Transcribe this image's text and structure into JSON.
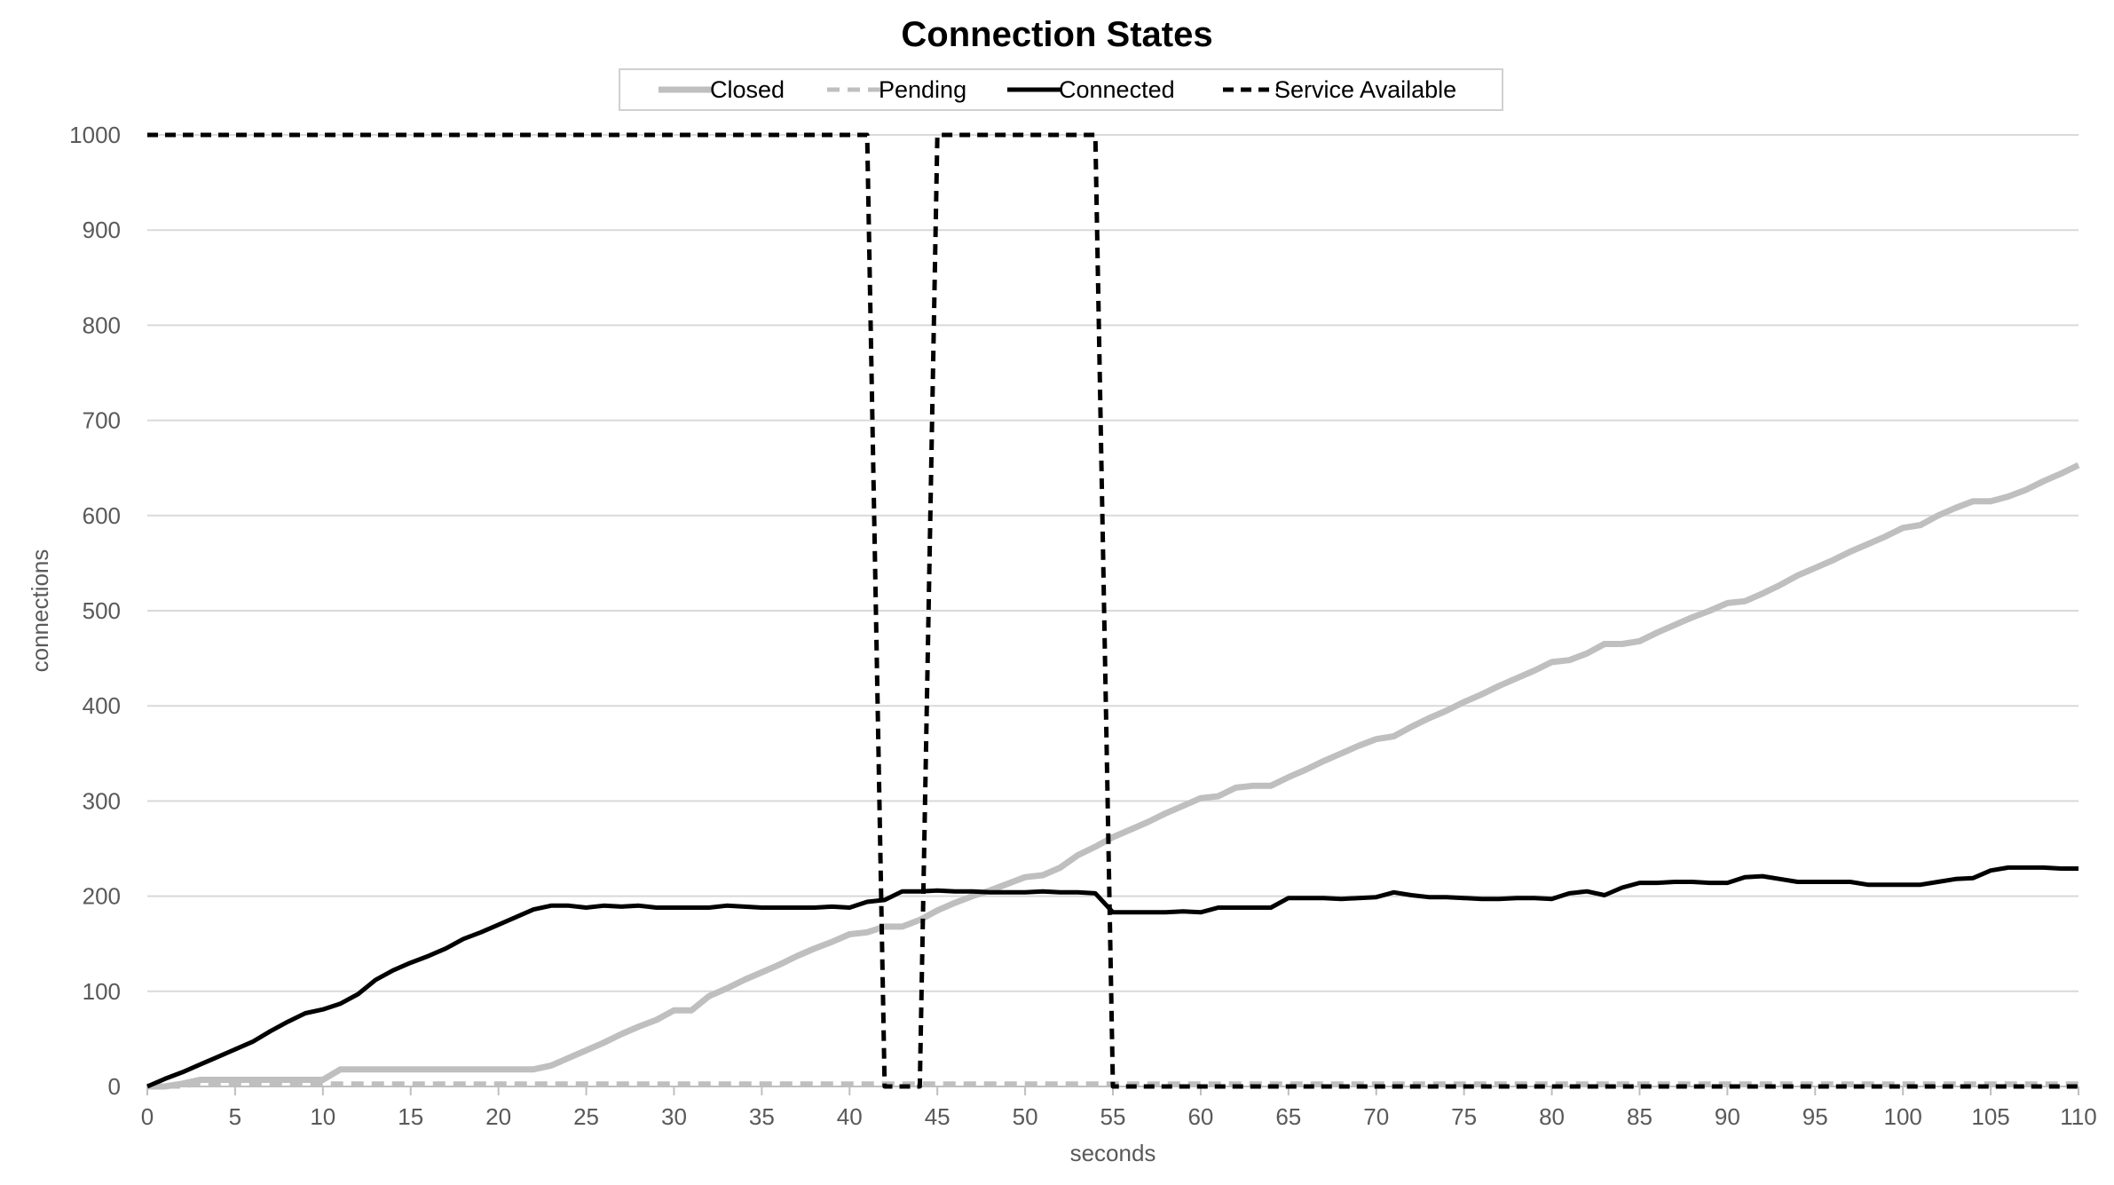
{
  "chart_data": {
    "type": "line",
    "title": "Connection States",
    "xlabel": "seconds",
    "ylabel": "connections",
    "xlim": [
      0,
      110
    ],
    "ylim": [
      0,
      1000
    ],
    "x_ticks": [
      0,
      5,
      10,
      15,
      20,
      25,
      30,
      35,
      40,
      45,
      50,
      55,
      60,
      65,
      70,
      75,
      80,
      85,
      90,
      95,
      100,
      105,
      110
    ],
    "y_ticks": [
      0,
      100,
      200,
      300,
      400,
      500,
      600,
      700,
      800,
      900,
      1000
    ],
    "grid": "horizontal",
    "legend": "top-center",
    "series": [
      {
        "name": "Closed",
        "color": "#bfbfbf",
        "style": "solid",
        "points": [
          [
            0,
            0
          ],
          [
            1,
            0
          ],
          [
            2,
            3
          ],
          [
            3,
            7
          ],
          [
            4,
            7
          ],
          [
            5,
            7
          ],
          [
            6,
            7
          ],
          [
            7,
            7
          ],
          [
            8,
            7
          ],
          [
            9,
            7
          ],
          [
            10,
            7
          ],
          [
            11,
            18
          ],
          [
            12,
            18
          ],
          [
            13,
            18
          ],
          [
            14,
            18
          ],
          [
            15,
            18
          ],
          [
            16,
            18
          ],
          [
            17,
            18
          ],
          [
            18,
            18
          ],
          [
            19,
            18
          ],
          [
            20,
            18
          ],
          [
            21,
            18
          ],
          [
            22,
            18
          ],
          [
            23,
            22
          ],
          [
            24,
            30
          ],
          [
            25,
            38
          ],
          [
            26,
            46
          ],
          [
            27,
            55
          ],
          [
            28,
            63
          ],
          [
            29,
            70
          ],
          [
            30,
            80
          ],
          [
            31,
            80
          ],
          [
            32,
            95
          ],
          [
            33,
            103
          ],
          [
            34,
            112
          ],
          [
            35,
            120
          ],
          [
            36,
            128
          ],
          [
            37,
            137
          ],
          [
            38,
            145
          ],
          [
            39,
            152
          ],
          [
            40,
            160
          ],
          [
            41,
            162
          ],
          [
            42,
            168
          ],
          [
            43,
            168
          ],
          [
            44,
            175
          ],
          [
            45,
            185
          ],
          [
            46,
            193
          ],
          [
            47,
            200
          ],
          [
            48,
            206
          ],
          [
            49,
            213
          ],
          [
            50,
            220
          ],
          [
            51,
            222
          ],
          [
            52,
            230
          ],
          [
            53,
            243
          ],
          [
            54,
            252
          ],
          [
            55,
            262
          ],
          [
            56,
            270
          ],
          [
            57,
            278
          ],
          [
            58,
            287
          ],
          [
            59,
            295
          ],
          [
            60,
            303
          ],
          [
            61,
            305
          ],
          [
            62,
            314
          ],
          [
            63,
            316
          ],
          [
            64,
            316
          ],
          [
            65,
            325
          ],
          [
            66,
            333
          ],
          [
            67,
            342
          ],
          [
            68,
            350
          ],
          [
            69,
            358
          ],
          [
            70,
            365
          ],
          [
            71,
            368
          ],
          [
            72,
            378
          ],
          [
            73,
            387
          ],
          [
            74,
            395
          ],
          [
            75,
            404
          ],
          [
            76,
            412
          ],
          [
            77,
            421
          ],
          [
            78,
            429
          ],
          [
            79,
            437
          ],
          [
            80,
            446
          ],
          [
            81,
            448
          ],
          [
            82,
            455
          ],
          [
            83,
            465
          ],
          [
            84,
            465
          ],
          [
            85,
            468
          ],
          [
            86,
            477
          ],
          [
            87,
            485
          ],
          [
            88,
            493
          ],
          [
            89,
            500
          ],
          [
            90,
            508
          ],
          [
            91,
            510
          ],
          [
            92,
            518
          ],
          [
            93,
            527
          ],
          [
            94,
            537
          ],
          [
            95,
            545
          ],
          [
            96,
            553
          ],
          [
            97,
            562
          ],
          [
            98,
            570
          ],
          [
            99,
            578
          ],
          [
            100,
            587
          ],
          [
            101,
            590
          ],
          [
            102,
            600
          ],
          [
            103,
            608
          ],
          [
            104,
            615
          ],
          [
            105,
            615
          ],
          [
            106,
            620
          ],
          [
            107,
            627
          ],
          [
            108,
            636
          ],
          [
            109,
            644
          ],
          [
            110,
            653
          ]
        ]
      },
      {
        "name": "Pending",
        "color": "#bfbfbf",
        "style": "dashed",
        "points": [
          [
            0,
            0
          ],
          [
            1,
            0
          ],
          [
            2,
            0
          ],
          [
            3,
            3
          ],
          [
            110,
            3
          ]
        ]
      },
      {
        "name": "Connected",
        "color": "#000000",
        "style": "solid",
        "points": [
          [
            0,
            0
          ],
          [
            1,
            8
          ],
          [
            2,
            15
          ],
          [
            3,
            23
          ],
          [
            4,
            31
          ],
          [
            5,
            39
          ],
          [
            6,
            47
          ],
          [
            7,
            58
          ],
          [
            8,
            68
          ],
          [
            9,
            77
          ],
          [
            10,
            81
          ],
          [
            11,
            87
          ],
          [
            12,
            97
          ],
          [
            13,
            112
          ],
          [
            14,
            122
          ],
          [
            15,
            130
          ],
          [
            16,
            137
          ],
          [
            17,
            145
          ],
          [
            18,
            155
          ],
          [
            19,
            162
          ],
          [
            20,
            170
          ],
          [
            21,
            178
          ],
          [
            22,
            186
          ],
          [
            23,
            190
          ],
          [
            24,
            190
          ],
          [
            25,
            188
          ],
          [
            26,
            190
          ],
          [
            27,
            189
          ],
          [
            28,
            190
          ],
          [
            29,
            188
          ],
          [
            30,
            188
          ],
          [
            31,
            188
          ],
          [
            32,
            188
          ],
          [
            33,
            190
          ],
          [
            34,
            189
          ],
          [
            35,
            188
          ],
          [
            36,
            188
          ],
          [
            37,
            188
          ],
          [
            38,
            188
          ],
          [
            39,
            189
          ],
          [
            40,
            188
          ],
          [
            41,
            194
          ],
          [
            42,
            196
          ],
          [
            43,
            205
          ],
          [
            44,
            205
          ],
          [
            45,
            206
          ],
          [
            46,
            205
          ],
          [
            47,
            205
          ],
          [
            48,
            204
          ],
          [
            49,
            204
          ],
          [
            50,
            204
          ],
          [
            51,
            205
          ],
          [
            52,
            204
          ],
          [
            53,
            204
          ],
          [
            54,
            203
          ],
          [
            55,
            183
          ],
          [
            56,
            183
          ],
          [
            57,
            183
          ],
          [
            58,
            183
          ],
          [
            59,
            184
          ],
          [
            60,
            183
          ],
          [
            61,
            188
          ],
          [
            62,
            188
          ],
          [
            63,
            188
          ],
          [
            64,
            188
          ],
          [
            65,
            198
          ],
          [
            66,
            198
          ],
          [
            67,
            198
          ],
          [
            68,
            197
          ],
          [
            69,
            198
          ],
          [
            70,
            199
          ],
          [
            71,
            204
          ],
          [
            72,
            201
          ],
          [
            73,
            199
          ],
          [
            74,
            199
          ],
          [
            75,
            198
          ],
          [
            76,
            197
          ],
          [
            77,
            197
          ],
          [
            78,
            198
          ],
          [
            79,
            198
          ],
          [
            80,
            197
          ],
          [
            81,
            203
          ],
          [
            82,
            205
          ],
          [
            83,
            201
          ],
          [
            84,
            209
          ],
          [
            85,
            214
          ],
          [
            86,
            214
          ],
          [
            87,
            215
          ],
          [
            88,
            215
          ],
          [
            89,
            214
          ],
          [
            90,
            214
          ],
          [
            91,
            220
          ],
          [
            92,
            221
          ],
          [
            93,
            218
          ],
          [
            94,
            215
          ],
          [
            95,
            215
          ],
          [
            96,
            215
          ],
          [
            97,
            215
          ],
          [
            98,
            212
          ],
          [
            99,
            212
          ],
          [
            100,
            212
          ],
          [
            101,
            212
          ],
          [
            102,
            215
          ],
          [
            103,
            218
          ],
          [
            104,
            219
          ],
          [
            105,
            227
          ],
          [
            106,
            230
          ],
          [
            107,
            230
          ],
          [
            108,
            230
          ],
          [
            109,
            229
          ],
          [
            110,
            229
          ]
        ]
      },
      {
        "name": "Service Available",
        "color": "#000000",
        "style": "dashed",
        "points": [
          [
            0,
            1000
          ],
          [
            41,
            1000
          ],
          [
            42,
            0
          ],
          [
            44,
            0
          ],
          [
            45,
            1000
          ],
          [
            54,
            1000
          ],
          [
            55,
            0
          ],
          [
            110,
            0
          ]
        ]
      }
    ]
  }
}
